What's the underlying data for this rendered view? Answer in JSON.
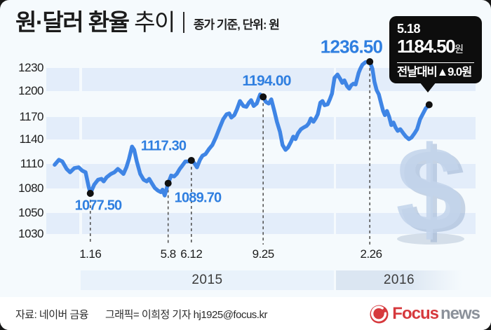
{
  "header": {
    "title_strong": "원·달러 환율",
    "title_light": "추이",
    "subtitle": "종가 기준, 단위: 원"
  },
  "callout": {
    "date": "5.18",
    "value": "1184.50",
    "value_unit": "원",
    "change_label": "전날대비",
    "change_value": "▲9.0원"
  },
  "chart_data": {
    "type": "line",
    "title": "원·달러 환율 추이 (종가 기준)",
    "ylabel": "원",
    "ylim": [
      1030,
      1230
    ],
    "grid": "alternating horizontal bands",
    "legend": "none",
    "y_ticks": [
      1230,
      1200,
      1170,
      1140,
      1110,
      1080,
      1050,
      1030
    ],
    "x_ticks": [
      {
        "label": "1.16",
        "f": 0.104
      },
      {
        "label": "5.8",
        "f": 0.285
      },
      {
        "label": "6.12",
        "f": 0.339
      },
      {
        "label": "9.25",
        "f": 0.506
      },
      {
        "label": "2.26",
        "f": 0.757
      }
    ],
    "year_bands": [
      "2015",
      "2016"
    ],
    "labeled_points": [
      {
        "f": 0.104,
        "value": 1077.5,
        "label": "1077.50"
      },
      {
        "f": 0.285,
        "value": 1089.7,
        "label": "1089.70"
      },
      {
        "f": 0.339,
        "value": 1117.3,
        "label": "1117.30"
      },
      {
        "f": 0.506,
        "value": 1194.0,
        "label": "1194.00"
      },
      {
        "f": 0.754,
        "value": 1236.5,
        "label": "1236.50"
      },
      {
        "f": 0.892,
        "value": 1184.5,
        "label": "1184.50",
        "callout": true
      }
    ],
    "series": [
      [
        0.021,
        1112
      ],
      [
        0.031,
        1118
      ],
      [
        0.039,
        1116
      ],
      [
        0.049,
        1107
      ],
      [
        0.057,
        1103
      ],
      [
        0.067,
        1108
      ],
      [
        0.077,
        1109
      ],
      [
        0.085,
        1105
      ],
      [
        0.093,
        1103
      ],
      [
        0.1,
        1086
      ],
      [
        0.104,
        1077.5
      ],
      [
        0.113,
        1088
      ],
      [
        0.122,
        1094
      ],
      [
        0.13,
        1095
      ],
      [
        0.135,
        1092
      ],
      [
        0.142,
        1097
      ],
      [
        0.152,
        1101
      ],
      [
        0.16,
        1103
      ],
      [
        0.168,
        1107
      ],
      [
        0.175,
        1104
      ],
      [
        0.181,
        1101
      ],
      [
        0.188,
        1109
      ],
      [
        0.194,
        1119
      ],
      [
        0.201,
        1134
      ],
      [
        0.206,
        1130
      ],
      [
        0.212,
        1116
      ],
      [
        0.22,
        1101
      ],
      [
        0.228,
        1094
      ],
      [
        0.235,
        1092
      ],
      [
        0.241,
        1095
      ],
      [
        0.248,
        1089
      ],
      [
        0.254,
        1084
      ],
      [
        0.261,
        1081
      ],
      [
        0.268,
        1079
      ],
      [
        0.272,
        1082
      ],
      [
        0.277,
        1075
      ],
      [
        0.285,
        1089.7
      ],
      [
        0.292,
        1099
      ],
      [
        0.299,
        1098
      ],
      [
        0.305,
        1101
      ],
      [
        0.312,
        1107
      ],
      [
        0.318,
        1111
      ],
      [
        0.325,
        1116
      ],
      [
        0.331,
        1116
      ],
      [
        0.339,
        1117.3
      ],
      [
        0.346,
        1114
      ],
      [
        0.352,
        1109
      ],
      [
        0.359,
        1118
      ],
      [
        0.365,
        1123
      ],
      [
        0.372,
        1125
      ],
      [
        0.38,
        1131
      ],
      [
        0.388,
        1136
      ],
      [
        0.396,
        1145
      ],
      [
        0.405,
        1157
      ],
      [
        0.413,
        1167
      ],
      [
        0.421,
        1173
      ],
      [
        0.427,
        1174
      ],
      [
        0.432,
        1169
      ],
      [
        0.439,
        1172
      ],
      [
        0.445,
        1179
      ],
      [
        0.452,
        1189
      ],
      [
        0.46,
        1183
      ],
      [
        0.467,
        1182
      ],
      [
        0.473,
        1187
      ],
      [
        0.478,
        1190
      ],
      [
        0.484,
        1183
      ],
      [
        0.491,
        1186
      ],
      [
        0.499,
        1197
      ],
      [
        0.506,
        1194
      ],
      [
        0.512,
        1188
      ],
      [
        0.519,
        1186
      ],
      [
        0.525,
        1191
      ],
      [
        0.532,
        1177
      ],
      [
        0.538,
        1164
      ],
      [
        0.545,
        1152
      ],
      [
        0.551,
        1136
      ],
      [
        0.558,
        1130
      ],
      [
        0.564,
        1133
      ],
      [
        0.571,
        1140
      ],
      [
        0.576,
        1146
      ],
      [
        0.581,
        1143
      ],
      [
        0.587,
        1150
      ],
      [
        0.594,
        1155
      ],
      [
        0.6,
        1157
      ],
      [
        0.607,
        1159
      ],
      [
        0.612,
        1162
      ],
      [
        0.617,
        1168
      ],
      [
        0.623,
        1164
      ],
      [
        0.628,
        1168
      ],
      [
        0.633,
        1173
      ],
      [
        0.639,
        1187
      ],
      [
        0.644,
        1189
      ],
      [
        0.649,
        1184
      ],
      [
        0.656,
        1185
      ],
      [
        0.661,
        1191
      ],
      [
        0.666,
        1198
      ],
      [
        0.672,
        1217
      ],
      [
        0.679,
        1221
      ],
      [
        0.685,
        1216
      ],
      [
        0.69,
        1211
      ],
      [
        0.695,
        1214
      ],
      [
        0.701,
        1207
      ],
      [
        0.706,
        1204
      ],
      [
        0.711,
        1208
      ],
      [
        0.716,
        1210
      ],
      [
        0.721,
        1209
      ],
      [
        0.728,
        1223
      ],
      [
        0.732,
        1228
      ],
      [
        0.737,
        1233
      ],
      [
        0.744,
        1236
      ],
      [
        0.754,
        1236.5
      ],
      [
        0.76,
        1228
      ],
      [
        0.765,
        1212
      ],
      [
        0.77,
        1202
      ],
      [
        0.775,
        1197
      ],
      [
        0.78,
        1187
      ],
      [
        0.785,
        1177
      ],
      [
        0.789,
        1172
      ],
      [
        0.794,
        1177
      ],
      [
        0.799,
        1170
      ],
      [
        0.804,
        1160
      ],
      [
        0.809,
        1163
      ],
      [
        0.814,
        1157
      ],
      [
        0.819,
        1153
      ],
      [
        0.825,
        1155
      ],
      [
        0.832,
        1150
      ],
      [
        0.838,
        1146
      ],
      [
        0.845,
        1143
      ],
      [
        0.851,
        1145
      ],
      [
        0.858,
        1150
      ],
      [
        0.864,
        1155
      ],
      [
        0.871,
        1167
      ],
      [
        0.878,
        1174
      ],
      [
        0.884,
        1180
      ],
      [
        0.892,
        1184.5
      ]
    ]
  },
  "footer": {
    "source": "자료: 네이버 금융",
    "credit": "그래픽= 이희정 기자  hj1925@focus.kr",
    "logo_brand": "Focus",
    "logo_suffix": "news"
  },
  "colors": {
    "line": "#3f85e5",
    "data_label": "#2f7fe0",
    "stripe": "#e3edfa",
    "background": "#f5fafd",
    "callout_bg": "#0d0d0d",
    "marker": "#101010",
    "logo_red": "#d6393d",
    "logo_gray": "#8b919a",
    "watermark": "#c3d4eb"
  }
}
